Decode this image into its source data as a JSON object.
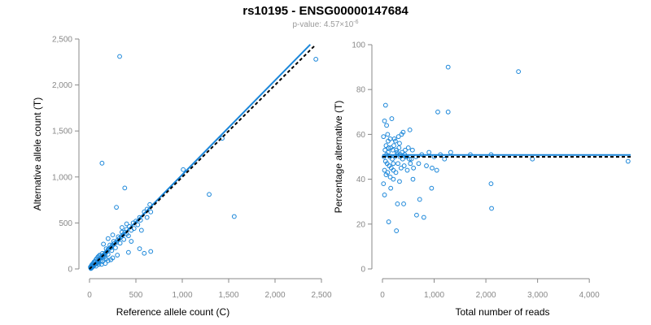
{
  "title": "rs10195 - ENSG00000147684",
  "subtitle": {
    "prefix": "p-value: 4.57×10",
    "exponent": "-6"
  },
  "colors": {
    "points": "#1a86d9",
    "fit": "#1a86d9",
    "reference": "#000000"
  },
  "chart_data": [
    {
      "type": "scatter",
      "xlabel": "Reference allele count (C)",
      "ylabel": "Alternative allele count (T)",
      "xlim": [
        0,
        2500
      ],
      "ylim": [
        0,
        2500
      ],
      "xticks": [
        0,
        500,
        1000,
        1500,
        2000,
        2500
      ],
      "yticks": [
        0,
        500,
        1000,
        1500,
        2000,
        2500
      ],
      "xtick_labels": [
        "0",
        "500",
        "1,000",
        "1,500",
        "2,000",
        "2,500"
      ],
      "ytick_labels": [
        "0",
        "500",
        "1,000",
        "1,500",
        "2,000",
        "2,500"
      ],
      "grid": false,
      "points": [
        [
          325,
          2310
        ],
        [
          2440,
          2280
        ],
        [
          135,
          1150
        ],
        [
          1010,
          1080
        ],
        [
          1430,
          1420
        ],
        [
          380,
          880
        ],
        [
          1290,
          810
        ],
        [
          1560,
          570
        ],
        [
          290,
          670
        ],
        [
          650,
          700
        ],
        [
          620,
          650
        ],
        [
          590,
          620
        ],
        [
          540,
          560
        ],
        [
          500,
          520
        ],
        [
          470,
          500
        ],
        [
          430,
          460
        ],
        [
          400,
          430
        ],
        [
          380,
          400
        ],
        [
          360,
          370
        ],
        [
          340,
          350
        ],
        [
          320,
          330
        ],
        [
          300,
          310
        ],
        [
          290,
          290
        ],
        [
          270,
          280
        ],
        [
          250,
          260
        ],
        [
          240,
          250
        ],
        [
          230,
          230
        ],
        [
          210,
          220
        ],
        [
          200,
          210
        ],
        [
          190,
          190
        ],
        [
          180,
          180
        ],
        [
          170,
          170
        ],
        [
          160,
          160
        ],
        [
          150,
          150
        ],
        [
          140,
          140
        ],
        [
          130,
          130
        ],
        [
          120,
          120
        ],
        [
          110,
          110
        ],
        [
          100,
          100
        ],
        [
          95,
          90
        ],
        [
          90,
          80
        ],
        [
          80,
          70
        ],
        [
          70,
          60
        ],
        [
          60,
          50
        ],
        [
          55,
          45
        ],
        [
          50,
          40
        ],
        [
          45,
          35
        ],
        [
          40,
          30
        ],
        [
          35,
          25
        ],
        [
          30,
          20
        ],
        [
          25,
          15
        ],
        [
          20,
          10
        ],
        [
          15,
          5
        ],
        [
          10,
          20
        ],
        [
          30,
          40
        ],
        [
          60,
          80
        ],
        [
          80,
          60
        ],
        [
          100,
          140
        ],
        [
          120,
          90
        ],
        [
          140,
          170
        ],
        [
          160,
          130
        ],
        [
          180,
          220
        ],
        [
          200,
          160
        ],
        [
          220,
          260
        ],
        [
          240,
          200
        ],
        [
          260,
          300
        ],
        [
          280,
          230
        ],
        [
          310,
          350
        ],
        [
          330,
          280
        ],
        [
          350,
          400
        ],
        [
          370,
          320
        ],
        [
          400,
          380
        ],
        [
          420,
          360
        ],
        [
          450,
          420
        ],
        [
          480,
          440
        ],
        [
          520,
          480
        ],
        [
          550,
          530
        ],
        [
          560,
          420
        ],
        [
          620,
          560
        ],
        [
          660,
          620
        ],
        [
          540,
          220
        ],
        [
          590,
          170
        ],
        [
          660,
          190
        ],
        [
          450,
          300
        ],
        [
          420,
          180
        ],
        [
          300,
          150
        ],
        [
          250,
          120
        ],
        [
          200,
          90
        ],
        [
          170,
          60
        ],
        [
          130,
          50
        ],
        [
          110,
          150
        ],
        [
          90,
          130
        ],
        [
          75,
          110
        ],
        [
          65,
          95
        ],
        [
          48,
          75
        ],
        [
          40,
          60
        ],
        [
          28,
          48
        ],
        [
          22,
          38
        ],
        [
          18,
          30
        ],
        [
          12,
          12
        ],
        [
          150,
          270
        ],
        [
          200,
          330
        ],
        [
          250,
          370
        ],
        [
          350,
          450
        ],
        [
          400,
          490
        ],
        [
          230,
          100
        ],
        [
          180,
          110
        ],
        [
          140,
          80
        ],
        [
          100,
          50
        ],
        [
          70,
          30
        ]
      ],
      "fit_line": [
        [
          0,
          0
        ],
        [
          2380,
          2440
        ]
      ],
      "reference_line": [
        [
          0,
          0
        ],
        [
          2440,
          2440
        ]
      ]
    },
    {
      "type": "scatter",
      "xlabel": "Total number of reads",
      "ylabel": "Percentage alternative (T)",
      "xlim": [
        0,
        4800
      ],
      "ylim": [
        0,
        100
      ],
      "xticks": [
        0,
        1000,
        2000,
        3000,
        4000
      ],
      "yticks": [
        0,
        20,
        40,
        60,
        80,
        100
      ],
      "xtick_labels": [
        "0",
        "1,000",
        "2,000",
        "3,000",
        "4,000"
      ],
      "ytick_labels": [
        "0",
        "20",
        "40",
        "60",
        "80",
        "100"
      ],
      "grid": false,
      "points": [
        [
          1270,
          90
        ],
        [
          2630,
          88
        ],
        [
          60,
          73
        ],
        [
          1070,
          70
        ],
        [
          1270,
          70
        ],
        [
          40,
          66
        ],
        [
          80,
          64
        ],
        [
          180,
          67
        ],
        [
          400,
          61
        ],
        [
          530,
          62
        ],
        [
          100,
          60
        ],
        [
          20,
          59
        ],
        [
          150,
          58
        ],
        [
          250,
          57
        ],
        [
          330,
          56
        ],
        [
          70,
          55
        ],
        [
          120,
          54
        ],
        [
          200,
          53
        ],
        [
          280,
          52
        ],
        [
          350,
          51
        ],
        [
          450,
          50
        ],
        [
          560,
          49
        ],
        [
          650,
          50
        ],
        [
          760,
          51
        ],
        [
          900,
          52
        ],
        [
          1000,
          50
        ],
        [
          1120,
          51
        ],
        [
          1200,
          49
        ],
        [
          1320,
          52
        ],
        [
          1700,
          51
        ],
        [
          2100,
          51
        ],
        [
          2900,
          49
        ],
        [
          4750,
          48
        ],
        [
          30,
          50
        ],
        [
          60,
          48
        ],
        [
          90,
          47
        ],
        [
          130,
          46
        ],
        [
          170,
          45
        ],
        [
          210,
          44
        ],
        [
          260,
          43
        ],
        [
          300,
          47
        ],
        [
          360,
          45
        ],
        [
          420,
          46
        ],
        [
          480,
          44
        ],
        [
          540,
          47
        ],
        [
          600,
          45
        ],
        [
          700,
          47
        ],
        [
          850,
          46
        ],
        [
          960,
          45
        ],
        [
          1050,
          44
        ],
        [
          50,
          53
        ],
        [
          110,
          52
        ],
        [
          160,
          54
        ],
        [
          220,
          55
        ],
        [
          270,
          53
        ],
        [
          320,
          54
        ],
        [
          380,
          52
        ],
        [
          440,
          53
        ],
        [
          500,
          54
        ],
        [
          580,
          53
        ],
        [
          40,
          44
        ],
        [
          70,
          42
        ],
        [
          100,
          43
        ],
        [
          150,
          41
        ],
        [
          210,
          40
        ],
        [
          20,
          38
        ],
        [
          40,
          33
        ],
        [
          160,
          36
        ],
        [
          290,
          29
        ],
        [
          410,
          29
        ],
        [
          660,
          24
        ],
        [
          800,
          23
        ],
        [
          720,
          31
        ],
        [
          2100,
          38
        ],
        [
          2110,
          27
        ],
        [
          120,
          21
        ],
        [
          270,
          17
        ],
        [
          950,
          36
        ],
        [
          330,
          39
        ],
        [
          590,
          40
        ],
        [
          80,
          51
        ],
        [
          140,
          50
        ],
        [
          190,
          49
        ],
        [
          240,
          50
        ],
        [
          290,
          51
        ],
        [
          340,
          50
        ],
        [
          390,
          49
        ],
        [
          430,
          51
        ],
        [
          470,
          50
        ],
        [
          520,
          49
        ],
        [
          110,
          57
        ],
        [
          230,
          58
        ],
        [
          310,
          59
        ],
        [
          370,
          60
        ],
        [
          210,
          47
        ]
      ],
      "fit_line": [
        [
          0,
          50.8
        ],
        [
          4800,
          50.8
        ]
      ],
      "reference_line": [
        [
          0,
          50
        ],
        [
          4800,
          50
        ]
      ]
    }
  ]
}
